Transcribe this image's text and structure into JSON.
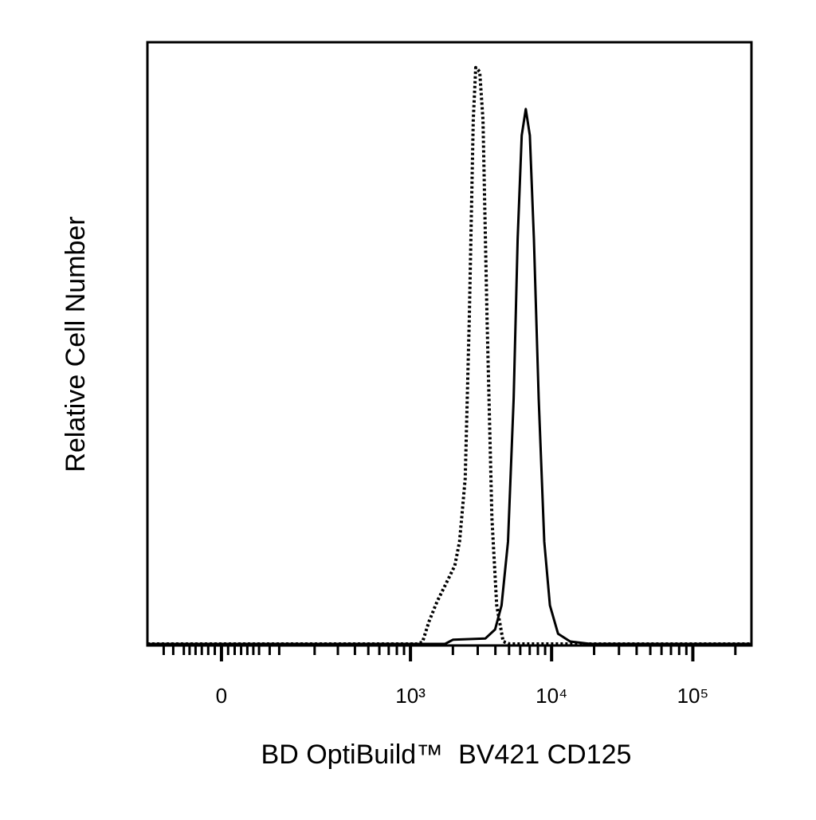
{
  "chart_data": {
    "type": "line",
    "xlabel": "BD OptiBuild™  BV421 CD125",
    "ylabel": "Relative Cell Number",
    "xscale": "asinh",
    "xlim": [
      -140,
      260000
    ],
    "ylim": [
      0,
      100
    ],
    "xticks": [
      0,
      {
        "value": 1000,
        "label": "10³"
      },
      {
        "value": 10000,
        "label": "10⁴"
      },
      {
        "value": 100000,
        "label": "10⁵"
      }
    ],
    "minor_xticks": [
      -100,
      -80,
      -60,
      -50,
      -40,
      -30,
      -20,
      -10,
      10,
      20,
      30,
      40,
      50,
      60,
      80,
      100,
      200,
      300,
      400,
      500,
      600,
      700,
      800,
      900,
      2000,
      3000,
      4000,
      5000,
      6000,
      7000,
      8000,
      9000,
      20000,
      30000,
      40000,
      50000,
      60000,
      70000,
      80000,
      90000,
      200000
    ],
    "series": [
      {
        "color": "#000000",
        "style": "dotted",
        "x": [
          -140,
          1110,
          1217,
          1353,
          1543,
          1760,
          2062,
          2231,
          2446,
          2613,
          2790,
          2903,
          3100,
          3267,
          3490,
          3778,
          4088,
          4540,
          5043,
          260000
        ],
        "values": [
          0,
          0,
          0.3,
          3.7,
          7.0,
          9.7,
          13.0,
          17.0,
          27.5,
          54.0,
          87.1,
          95.8,
          95.1,
          87.1,
          54.0,
          20.9,
          6.4,
          0.4,
          0,
          0
        ]
      },
      {
        "color": "#000000",
        "style": "solid",
        "x": [
          -140,
          1760,
          2006,
          3397,
          3980,
          4424,
          4913,
          5390,
          5751,
          6145,
          6567,
          7013,
          7492,
          8103,
          8880,
          9737,
          11110,
          13530,
          18810,
          260000
        ],
        "values": [
          0,
          0,
          0.7,
          0.9,
          2.4,
          6.4,
          17.0,
          40.8,
          67.3,
          84.5,
          88.9,
          84.5,
          67.3,
          40.8,
          17.0,
          6.4,
          1.7,
          0.4,
          0,
          0
        ]
      }
    ]
  }
}
